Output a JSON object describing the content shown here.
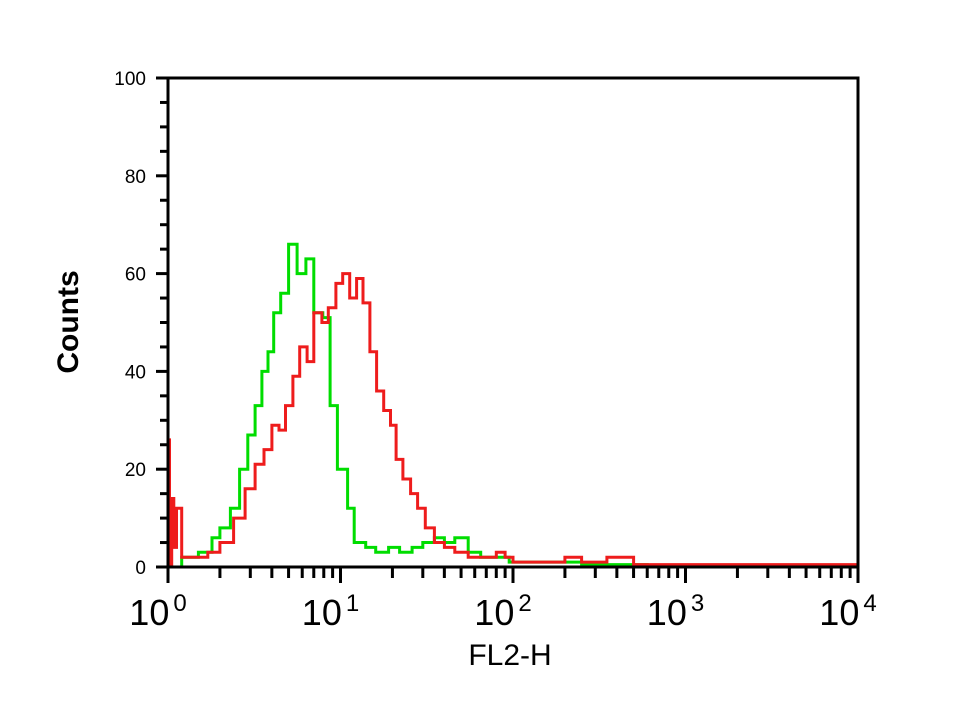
{
  "chart_data": {
    "type": "line",
    "title": "",
    "xlabel": "FL2-H",
    "ylabel": "Counts",
    "xscale": "log",
    "xlim": [
      1,
      10000
    ],
    "ylim": [
      0,
      100
    ],
    "yticks": [
      "0",
      "20",
      "40",
      "60",
      "80",
      "100"
    ],
    "xticks": [
      {
        "base": "10",
        "exp": "0"
      },
      {
        "base": "10",
        "exp": "1"
      },
      {
        "base": "10",
        "exp": "2"
      },
      {
        "base": "10",
        "exp": "3"
      },
      {
        "base": "10",
        "exp": "4"
      }
    ],
    "grid": false,
    "series": [
      {
        "color": "#00dd00",
        "x": [
          1.0,
          1.2,
          1.5,
          1.8,
          2.0,
          2.3,
          2.6,
          2.9,
          3.2,
          3.5,
          3.8,
          4.1,
          4.5,
          5.0,
          5.6,
          6.3,
          7.0,
          7.9,
          8.7,
          9.6,
          11,
          12,
          14,
          16,
          19,
          22,
          26,
          30,
          35,
          40,
          46,
          55,
          65,
          80,
          95,
          110,
          150,
          200,
          250,
          300,
          400,
          600,
          1000,
          3000,
          9500,
          10000
        ],
        "y": [
          0,
          2,
          3,
          6,
          8,
          12,
          20,
          27,
          33,
          40,
          44,
          52,
          56,
          66,
          60,
          63,
          52,
          51,
          33,
          20,
          12,
          5,
          4,
          3,
          4,
          3,
          4,
          5,
          6,
          5,
          6,
          3,
          2,
          2,
          1,
          1,
          1,
          1,
          0.5,
          0.5,
          0.5,
          0,
          0,
          0,
          0,
          1
        ]
      },
      {
        "color": "#ee1c1c",
        "x": [
          1.0,
          1.02,
          1.05,
          1.08,
          1.12,
          1.2,
          1.4,
          1.7,
          2.0,
          2.4,
          2.8,
          3.2,
          3.6,
          4.0,
          4.4,
          4.8,
          5.3,
          5.8,
          6.4,
          7.0,
          7.8,
          8.5,
          9.4,
          10.3,
          11.3,
          12.4,
          13.5,
          14.8,
          16.2,
          17.8,
          19.5,
          21,
          23,
          25.5,
          28,
          31,
          35,
          40,
          46,
          55,
          65,
          80,
          90,
          100,
          150,
          200,
          250,
          350,
          500,
          1000,
          3000,
          10000
        ],
        "y": [
          26,
          0,
          14,
          4,
          12,
          2,
          2,
          3,
          5,
          10,
          16,
          21,
          24,
          29,
          28,
          33,
          39,
          45,
          42,
          52,
          50,
          53,
          58,
          60,
          55,
          59,
          54,
          44,
          36,
          32,
          29,
          22,
          18,
          15,
          12,
          8,
          5,
          4,
          3,
          2,
          2,
          3,
          2,
          1,
          1,
          2,
          1,
          2,
          0.5,
          0.5,
          0.5,
          0.5
        ]
      }
    ]
  }
}
